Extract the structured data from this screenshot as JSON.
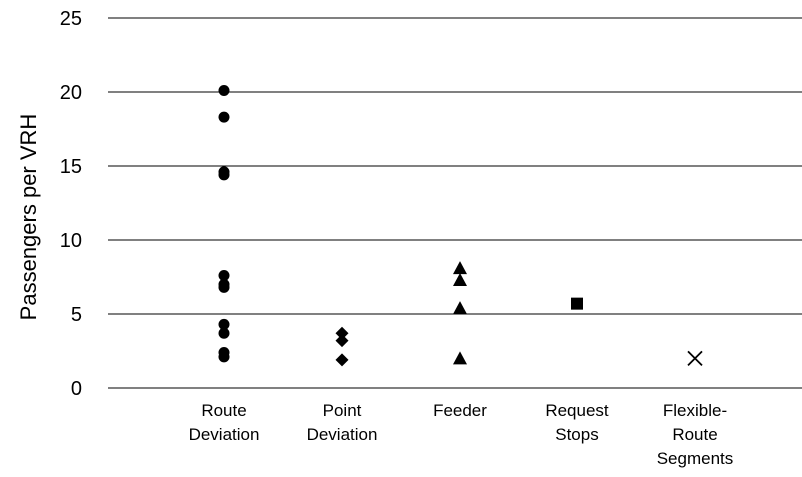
{
  "chart_data": {
    "type": "scatter",
    "title": "",
    "xlabel": "",
    "ylabel": "Passengers per VRH",
    "ylim": [
      0,
      25
    ],
    "yticks": [
      0,
      5,
      10,
      15,
      20,
      25
    ],
    "grid": true,
    "legend": "none",
    "categories": [
      "Route Deviation",
      "Point Deviation",
      "Feeder",
      "Request Stops",
      "Flexible-Route Segments"
    ],
    "category_label_lines": [
      [
        "Route",
        "Deviation"
      ],
      [
        "Point",
        "Deviation"
      ],
      [
        "Feeder"
      ],
      [
        "Request",
        "Stops"
      ],
      [
        "Flexible-",
        "Route",
        "Segments"
      ]
    ],
    "series": [
      {
        "category": "Route Deviation",
        "marker": "circle",
        "values": [
          20.1,
          18.3,
          14.6,
          14.4,
          7.6,
          7.0,
          6.8,
          4.3,
          3.7,
          2.4,
          2.1
        ]
      },
      {
        "category": "Point Deviation",
        "marker": "diamond",
        "values": [
          3.7,
          3.2,
          1.9
        ]
      },
      {
        "category": "Feeder",
        "marker": "triangle",
        "values": [
          8.1,
          7.3,
          5.4,
          2.0
        ]
      },
      {
        "category": "Request Stops",
        "marker": "square",
        "values": [
          5.7
        ]
      },
      {
        "category": "Flexible-Route Segments",
        "marker": "x",
        "values": [
          2.0
        ]
      }
    ],
    "colors": {
      "marker": "#000000",
      "grid": "#000000",
      "background": "#ffffff"
    }
  }
}
